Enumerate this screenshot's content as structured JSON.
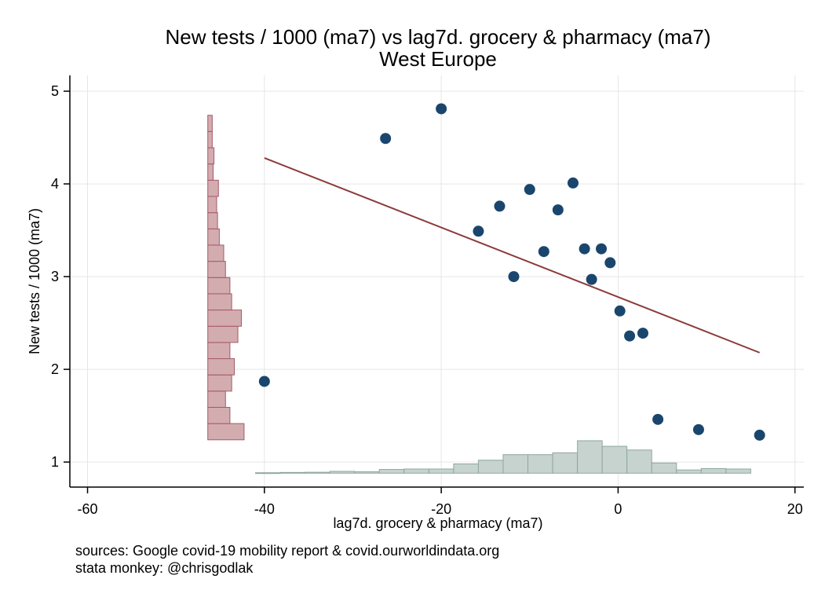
{
  "chart_data": {
    "type": "scatter",
    "title": "New tests / 1000 (ma7) vs lag7d. grocery & pharmacy (ma7)",
    "subtitle": "West Europe",
    "xlabel": "lag7d. grocery & pharmacy (ma7)",
    "ylabel": "New tests / 1000 (ma7)",
    "xlim": [
      -62,
      21
    ],
    "ylim": [
      0.73,
      5.17
    ],
    "xticks": [
      -60,
      -40,
      -20,
      0,
      20
    ],
    "yticks": [
      1,
      2,
      3,
      4,
      5
    ],
    "grid": true,
    "colors": {
      "points": "#1a466e",
      "fit_line": "#8b3a3a",
      "y_hist_fill": "#d3acb0",
      "y_hist_stroke": "#a35a66",
      "x_hist_fill": "#c6d3cf",
      "x_hist_stroke": "#8fa79f",
      "grid": "#e6e6e6"
    },
    "points": [
      {
        "x": -40.0,
        "y": 1.87
      },
      {
        "x": -26.3,
        "y": 4.49
      },
      {
        "x": -20.0,
        "y": 4.81
      },
      {
        "x": -15.8,
        "y": 3.49
      },
      {
        "x": -13.4,
        "y": 3.76
      },
      {
        "x": -11.8,
        "y": 3.0
      },
      {
        "x": -10.0,
        "y": 3.94
      },
      {
        "x": -8.4,
        "y": 3.27
      },
      {
        "x": -6.8,
        "y": 3.72
      },
      {
        "x": -5.1,
        "y": 4.01
      },
      {
        "x": -3.8,
        "y": 3.3
      },
      {
        "x": -3.0,
        "y": 2.97
      },
      {
        "x": -1.9,
        "y": 3.3
      },
      {
        "x": -0.9,
        "y": 3.15
      },
      {
        "x": 0.2,
        "y": 2.63
      },
      {
        "x": 1.3,
        "y": 2.36
      },
      {
        "x": 2.8,
        "y": 2.39
      },
      {
        "x": 4.5,
        "y": 1.46
      },
      {
        "x": 9.1,
        "y": 1.35
      },
      {
        "x": 16.0,
        "y": 1.29
      }
    ],
    "fit_line": [
      {
        "x": -40.0,
        "y": 4.28
      },
      {
        "x": 16.0,
        "y": 2.18
      }
    ],
    "y_histogram": {
      "x_base": -46.4,
      "bin_width": 0.175,
      "bins": [
        {
          "y_start": 1.24,
          "length": 4.1
        },
        {
          "y_start": 1.415,
          "length": 2.5
        },
        {
          "y_start": 1.59,
          "length": 2.0
        },
        {
          "y_start": 1.765,
          "length": 2.7
        },
        {
          "y_start": 1.94,
          "length": 3.0
        },
        {
          "y_start": 2.115,
          "length": 2.5
        },
        {
          "y_start": 2.29,
          "length": 3.4
        },
        {
          "y_start": 2.465,
          "length": 3.8
        },
        {
          "y_start": 2.64,
          "length": 2.7
        },
        {
          "y_start": 2.815,
          "length": 2.5
        },
        {
          "y_start": 2.99,
          "length": 2.0
        },
        {
          "y_start": 3.165,
          "length": 1.8
        },
        {
          "y_start": 3.34,
          "length": 1.3
        },
        {
          "y_start": 3.515,
          "length": 1.1
        },
        {
          "y_start": 3.69,
          "length": 1.0
        },
        {
          "y_start": 3.865,
          "length": 1.2
        },
        {
          "y_start": 4.04,
          "length": 0.6
        },
        {
          "y_start": 4.215,
          "length": 0.7
        },
        {
          "y_start": 4.39,
          "length": 0.5
        },
        {
          "y_start": 4.565,
          "length": 0.5
        }
      ]
    },
    "x_histogram": {
      "y_base": 0.88,
      "bins": [
        {
          "x_start": -41.0,
          "x_end": -38.2,
          "height": 0.005
        },
        {
          "x_start": -38.2,
          "x_end": -35.4,
          "height": 0.008
        },
        {
          "x_start": -35.4,
          "x_end": -32.6,
          "height": 0.01
        },
        {
          "x_start": -32.6,
          "x_end": -29.8,
          "height": 0.02
        },
        {
          "x_start": -29.8,
          "x_end": -27.0,
          "height": 0.015
        },
        {
          "x_start": -27.0,
          "x_end": -24.2,
          "height": 0.04
        },
        {
          "x_start": -24.2,
          "x_end": -21.4,
          "height": 0.045
        },
        {
          "x_start": -21.4,
          "x_end": -18.6,
          "height": 0.045
        },
        {
          "x_start": -18.6,
          "x_end": -15.8,
          "height": 0.1
        },
        {
          "x_start": -15.8,
          "x_end": -13.0,
          "height": 0.14
        },
        {
          "x_start": -13.0,
          "x_end": -10.2,
          "height": 0.2
        },
        {
          "x_start": -10.2,
          "x_end": -7.4,
          "height": 0.2
        },
        {
          "x_start": -7.4,
          "x_end": -4.6,
          "height": 0.22
        },
        {
          "x_start": -4.6,
          "x_end": -1.8,
          "height": 0.35
        },
        {
          "x_start": -1.8,
          "x_end": 1.0,
          "height": 0.29
        },
        {
          "x_start": 1.0,
          "x_end": 3.8,
          "height": 0.25
        },
        {
          "x_start": 3.8,
          "x_end": 6.6,
          "height": 0.11
        },
        {
          "x_start": 6.6,
          "x_end": 9.4,
          "height": 0.035
        },
        {
          "x_start": 9.4,
          "x_end": 12.2,
          "height": 0.05
        },
        {
          "x_start": 12.2,
          "x_end": 15.0,
          "height": 0.045
        }
      ]
    }
  },
  "footer": {
    "line1": "sources: Google covid-19 mobility report & covid.ourworldindata.org",
    "line2": "stata monkey: @chrisgodlak"
  }
}
